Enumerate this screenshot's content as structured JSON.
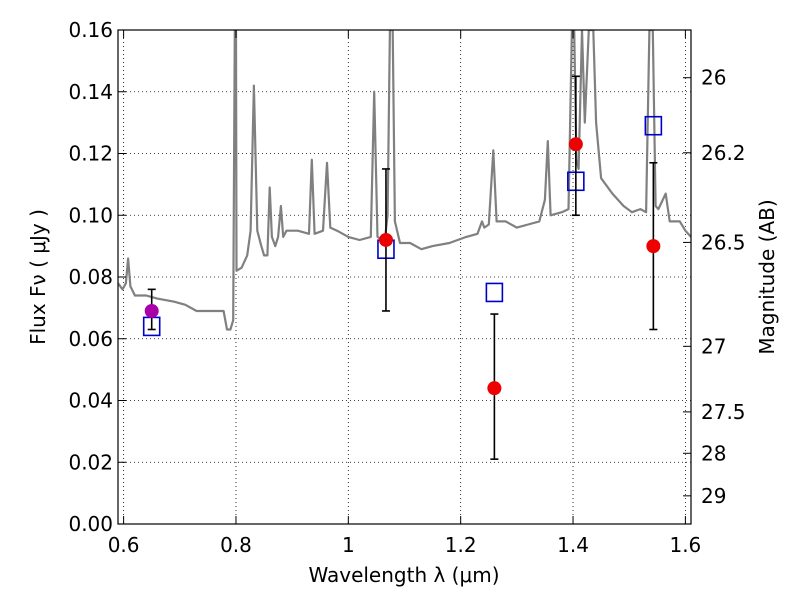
{
  "chart_data": {
    "type": "scatter",
    "xlabel": "Wavelength  λ (μm)",
    "ylabel": "Flux  Fν  ( μJy )",
    "ylabel_right": "Magnitude (AB)",
    "xlim": [
      0.59,
      1.61
    ],
    "ylim": [
      0.0,
      0.16
    ],
    "grid": true,
    "x_ticks": [
      0.6,
      0.8,
      1.0,
      1.2,
      1.4,
      1.6
    ],
    "x_tick_labels": [
      "0.6",
      "0.8",
      "1",
      "1.2",
      "1.4",
      "1.6"
    ],
    "y_ticks": [
      0.0,
      0.02,
      0.04,
      0.06,
      0.08,
      0.1,
      0.12,
      0.14,
      0.16
    ],
    "y_tick_labels": [
      "0.00",
      "0.02",
      "0.04",
      "0.06",
      "0.08",
      "0.10",
      "0.12",
      "0.14",
      "0.16"
    ],
    "right_ticks": [
      {
        "label": "26",
        "mag": 26.0
      },
      {
        "label": "26.2",
        "mag": 26.2
      },
      {
        "label": "26.5",
        "mag": 26.5
      },
      {
        "label": "27",
        "mag": 27.0
      },
      {
        "label": "27.5",
        "mag": 27.5
      },
      {
        "label": "28",
        "mag": 28.0
      },
      {
        "label": "29",
        "mag": 29.0
      }
    ],
    "colors": {
      "template": "#808080",
      "observed": "#ee0000",
      "observed_first": "#aa00aa",
      "model": "#0000cc",
      "errorbar": "#000000"
    },
    "series": [
      {
        "kind": "observed",
        "points": [
          {
            "x": 0.65,
            "y": 0.069,
            "yerr_low": 0.063,
            "yerr_high": 0.076
          },
          {
            "x": 1.067,
            "y": 0.092,
            "yerr_low": 0.069,
            "yerr_high": 0.115
          },
          {
            "x": 1.26,
            "y": 0.044,
            "yerr_low": 0.021,
            "yerr_high": 0.068
          },
          {
            "x": 1.405,
            "y": 0.123,
            "yerr_low": 0.1,
            "yerr_high": 0.145
          },
          {
            "x": 1.543,
            "y": 0.09,
            "yerr_low": 0.063,
            "yerr_high": 0.117
          }
        ]
      },
      {
        "kind": "model",
        "points": [
          {
            "x": 0.65,
            "y": 0.064
          },
          {
            "x": 1.067,
            "y": 0.089
          },
          {
            "x": 1.26,
            "y": 0.075
          },
          {
            "x": 1.405,
            "y": 0.111
          },
          {
            "x": 1.543,
            "y": 0.129
          }
        ]
      },
      {
        "kind": "template",
        "points": [
          [
            0.59,
            0.078
          ],
          [
            0.598,
            0.076
          ],
          [
            0.604,
            0.078
          ],
          [
            0.608,
            0.086
          ],
          [
            0.612,
            0.077
          ],
          [
            0.62,
            0.074
          ],
          [
            0.64,
            0.074
          ],
          [
            0.66,
            0.073
          ],
          [
            0.69,
            0.072
          ],
          [
            0.71,
            0.071
          ],
          [
            0.73,
            0.069
          ],
          [
            0.76,
            0.069
          ],
          [
            0.778,
            0.069
          ],
          [
            0.784,
            0.063
          ],
          [
            0.79,
            0.063
          ],
          [
            0.795,
            0.066
          ],
          [
            0.798,
            0.16
          ],
          [
            0.8,
            0.16
          ],
          [
            0.801,
            0.082
          ],
          [
            0.81,
            0.083
          ],
          [
            0.82,
            0.087
          ],
          [
            0.826,
            0.095
          ],
          [
            0.832,
            0.142
          ],
          [
            0.838,
            0.095
          ],
          [
            0.845,
            0.09
          ],
          [
            0.85,
            0.087
          ],
          [
            0.856,
            0.087
          ],
          [
            0.86,
            0.109
          ],
          [
            0.864,
            0.093
          ],
          [
            0.87,
            0.09
          ],
          [
            0.875,
            0.093
          ],
          [
            0.88,
            0.103
          ],
          [
            0.884,
            0.093
          ],
          [
            0.89,
            0.095
          ],
          [
            0.91,
            0.095
          ],
          [
            0.93,
            0.094
          ],
          [
            0.935,
            0.118
          ],
          [
            0.94,
            0.094
          ],
          [
            0.955,
            0.095
          ],
          [
            0.962,
            0.117
          ],
          [
            0.968,
            0.096
          ],
          [
            0.98,
            0.095
          ],
          [
            1.0,
            0.093
          ],
          [
            1.02,
            0.092
          ],
          [
            1.04,
            0.093
          ],
          [
            1.046,
            0.14
          ],
          [
            1.052,
            0.093
          ],
          [
            1.06,
            0.092
          ],
          [
            1.065,
            0.092
          ],
          [
            1.07,
            0.1
          ],
          [
            1.074,
            0.16
          ],
          [
            1.079,
            0.16
          ],
          [
            1.083,
            0.098
          ],
          [
            1.092,
            0.091
          ],
          [
            1.11,
            0.091
          ],
          [
            1.13,
            0.089
          ],
          [
            1.15,
            0.09
          ],
          [
            1.18,
            0.091
          ],
          [
            1.21,
            0.093
          ],
          [
            1.23,
            0.094
          ],
          [
            1.238,
            0.098
          ],
          [
            1.242,
            0.096
          ],
          [
            1.25,
            0.097
          ],
          [
            1.258,
            0.121
          ],
          [
            1.264,
            0.098
          ],
          [
            1.28,
            0.098
          ],
          [
            1.3,
            0.096
          ],
          [
            1.32,
            0.097
          ],
          [
            1.34,
            0.098
          ],
          [
            1.35,
            0.105
          ],
          [
            1.355,
            0.124
          ],
          [
            1.36,
            0.1
          ],
          [
            1.38,
            0.101
          ],
          [
            1.392,
            0.102
          ],
          [
            1.398,
            0.16
          ],
          [
            1.402,
            0.16
          ],
          [
            1.406,
            0.118
          ],
          [
            1.41,
            0.115
          ],
          [
            1.416,
            0.16
          ],
          [
            1.421,
            0.13
          ],
          [
            1.428,
            0.16
          ],
          [
            1.436,
            0.16
          ],
          [
            1.441,
            0.13
          ],
          [
            1.45,
            0.112
          ],
          [
            1.47,
            0.107
          ],
          [
            1.49,
            0.103
          ],
          [
            1.505,
            0.101
          ],
          [
            1.52,
            0.102
          ],
          [
            1.53,
            0.101
          ],
          [
            1.536,
            0.16
          ],
          [
            1.542,
            0.16
          ],
          [
            1.547,
            0.103
          ],
          [
            1.552,
            0.102
          ],
          [
            1.565,
            0.107
          ],
          [
            1.572,
            0.098
          ],
          [
            1.59,
            0.098
          ],
          [
            1.6,
            0.095
          ],
          [
            1.61,
            0.093
          ]
        ]
      }
    ]
  }
}
